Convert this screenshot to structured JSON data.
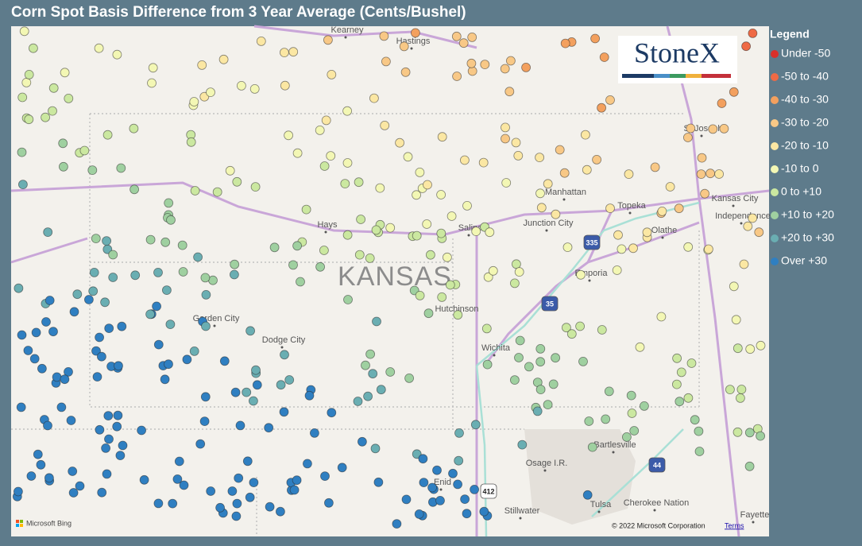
{
  "title": "Corn Spot Basis Difference from 3 Year Average (Cents/Bushel)",
  "legend": {
    "title": "Legend",
    "items": [
      {
        "label": "Under -50",
        "color": "#d9302a"
      },
      {
        "label": "-50 to -40",
        "color": "#ef6a45"
      },
      {
        "label": "-40 to -30",
        "color": "#f3a05e"
      },
      {
        "label": "-30 to -20",
        "color": "#f8c886"
      },
      {
        "label": "-20 to -10",
        "color": "#fbe7a3"
      },
      {
        "label": "-10 to 0",
        "color": "#f3f7b4"
      },
      {
        "label": "0 to +10",
        "color": "#cbe8a0"
      },
      {
        "label": "+10 to +20",
        "color": "#9fd0a0"
      },
      {
        "label": "+20 to +30",
        "color": "#6aaeb2"
      },
      {
        "label": "Over +30",
        "color": "#2f7fc1"
      }
    ]
  },
  "logo": "StoneX",
  "map": {
    "state_label": "KANSAS",
    "places": [
      "Kearney",
      "Hastings",
      "Hays",
      "Salina",
      "Junction City",
      "Manhattan",
      "Topeka",
      "Kansas City",
      "Independence",
      "Olathe",
      "St Joseph",
      "Emporia",
      "Hutchinson",
      "Wichita",
      "Garden City",
      "Dodge City",
      "Enid",
      "Stillwater",
      "Bartlesville",
      "Osage I.R.",
      "Tulsa",
      "Cherokee Nation",
      "Fayette"
    ],
    "highway_shields": [
      "335",
      "35",
      "412",
      "44"
    ]
  },
  "attribution": {
    "provider": "Microsoft Bing",
    "copyright": "© 2022 Microsoft Corporation",
    "terms": "Terms"
  }
}
